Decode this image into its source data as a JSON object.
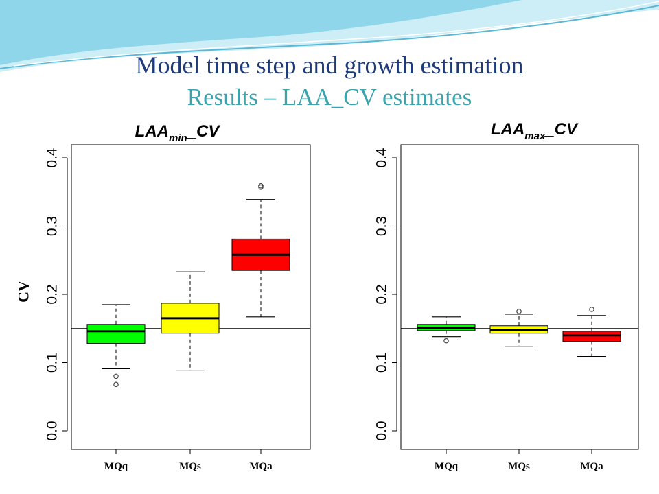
{
  "slide": {
    "title": "Model time step and growth estimation",
    "subtitle": "Results – LAA_CV estimates",
    "title_color": "#1f3a78",
    "subtitle_color": "#3aa3ad",
    "banner_colors": [
      "#8fd6ea",
      "#cdeef6",
      "#5bb7d6"
    ]
  },
  "chart_data": [
    {
      "type": "boxplot",
      "title_main": "LAA",
      "title_sub": "min",
      "title_suffix": "_CV",
      "ylabel": "CV",
      "ylim": [
        0.0,
        0.4
      ],
      "yticks": [
        "0.0",
        "0.1",
        "0.2",
        "0.3",
        "0.4"
      ],
      "reference_line": 0.15,
      "categories": [
        "MQq",
        "MQs",
        "MQa"
      ],
      "colors": [
        "#00ff00",
        "#ffff00",
        "#ff0000"
      ],
      "boxes": [
        {
          "whisker_low": 0.091,
          "q1": 0.128,
          "median": 0.146,
          "q3": 0.156,
          "whisker_high": 0.185,
          "outliers": [
            0.08,
            0.068
          ]
        },
        {
          "whisker_low": 0.088,
          "q1": 0.143,
          "median": 0.165,
          "q3": 0.187,
          "whisker_high": 0.233,
          "outliers": []
        },
        {
          "whisker_low": 0.167,
          "q1": 0.235,
          "median": 0.258,
          "q3": 0.281,
          "whisker_high": 0.339,
          "outliers": [
            0.357,
            0.359
          ]
        }
      ]
    },
    {
      "type": "boxplot",
      "title_main": "LAA",
      "title_sub": "max",
      "title_suffix": "_CV",
      "ylabel": "",
      "ylim": [
        0.0,
        0.4
      ],
      "yticks": [
        "0.0",
        "0.1",
        "0.2",
        "0.3",
        "0.4"
      ],
      "reference_line": 0.15,
      "categories": [
        "MQq",
        "MQs",
        "MQa"
      ],
      "colors": [
        "#00ff00",
        "#ffff00",
        "#ff0000"
      ],
      "boxes": [
        {
          "whisker_low": 0.138,
          "q1": 0.147,
          "median": 0.151,
          "q3": 0.156,
          "whisker_high": 0.167,
          "outliers": [
            0.132
          ]
        },
        {
          "whisker_low": 0.124,
          "q1": 0.143,
          "median": 0.148,
          "q3": 0.154,
          "whisker_high": 0.171,
          "outliers": [
            0.175
          ]
        },
        {
          "whisker_low": 0.109,
          "q1": 0.131,
          "median": 0.14,
          "q3": 0.146,
          "whisker_high": 0.169,
          "outliers": [
            0.178
          ]
        }
      ]
    }
  ]
}
